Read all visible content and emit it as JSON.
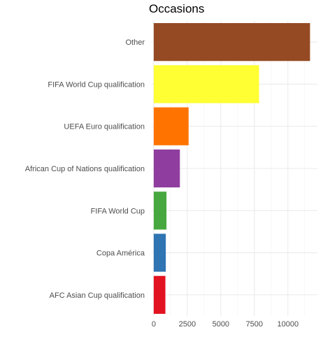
{
  "chart_data": {
    "type": "bar",
    "orientation": "horizontal",
    "title": "Occasions",
    "xlabel": "",
    "ylabel": "",
    "categories": [
      "Other",
      "FIFA World Cup qualification",
      "UEFA Euro qualification",
      "African Cup of Nations qualification",
      "FIFA World Cup",
      "Copa América",
      "AFC Asian Cup qualification"
    ],
    "values": [
      11650,
      7850,
      2600,
      1950,
      950,
      900,
      870
    ],
    "colors": [
      "#964a23",
      "#ffff33",
      "#ff7400",
      "#8f3d9e",
      "#47a83f",
      "#2f74b3",
      "#e21321"
    ],
    "xlim": [
      -150,
      12200
    ],
    "xticks": [
      0,
      2500,
      5000,
      7500,
      10000
    ],
    "xtick_labels": [
      "0",
      "2500",
      "5000",
      "7500",
      "10000"
    ],
    "grid": true,
    "legend": "none"
  }
}
